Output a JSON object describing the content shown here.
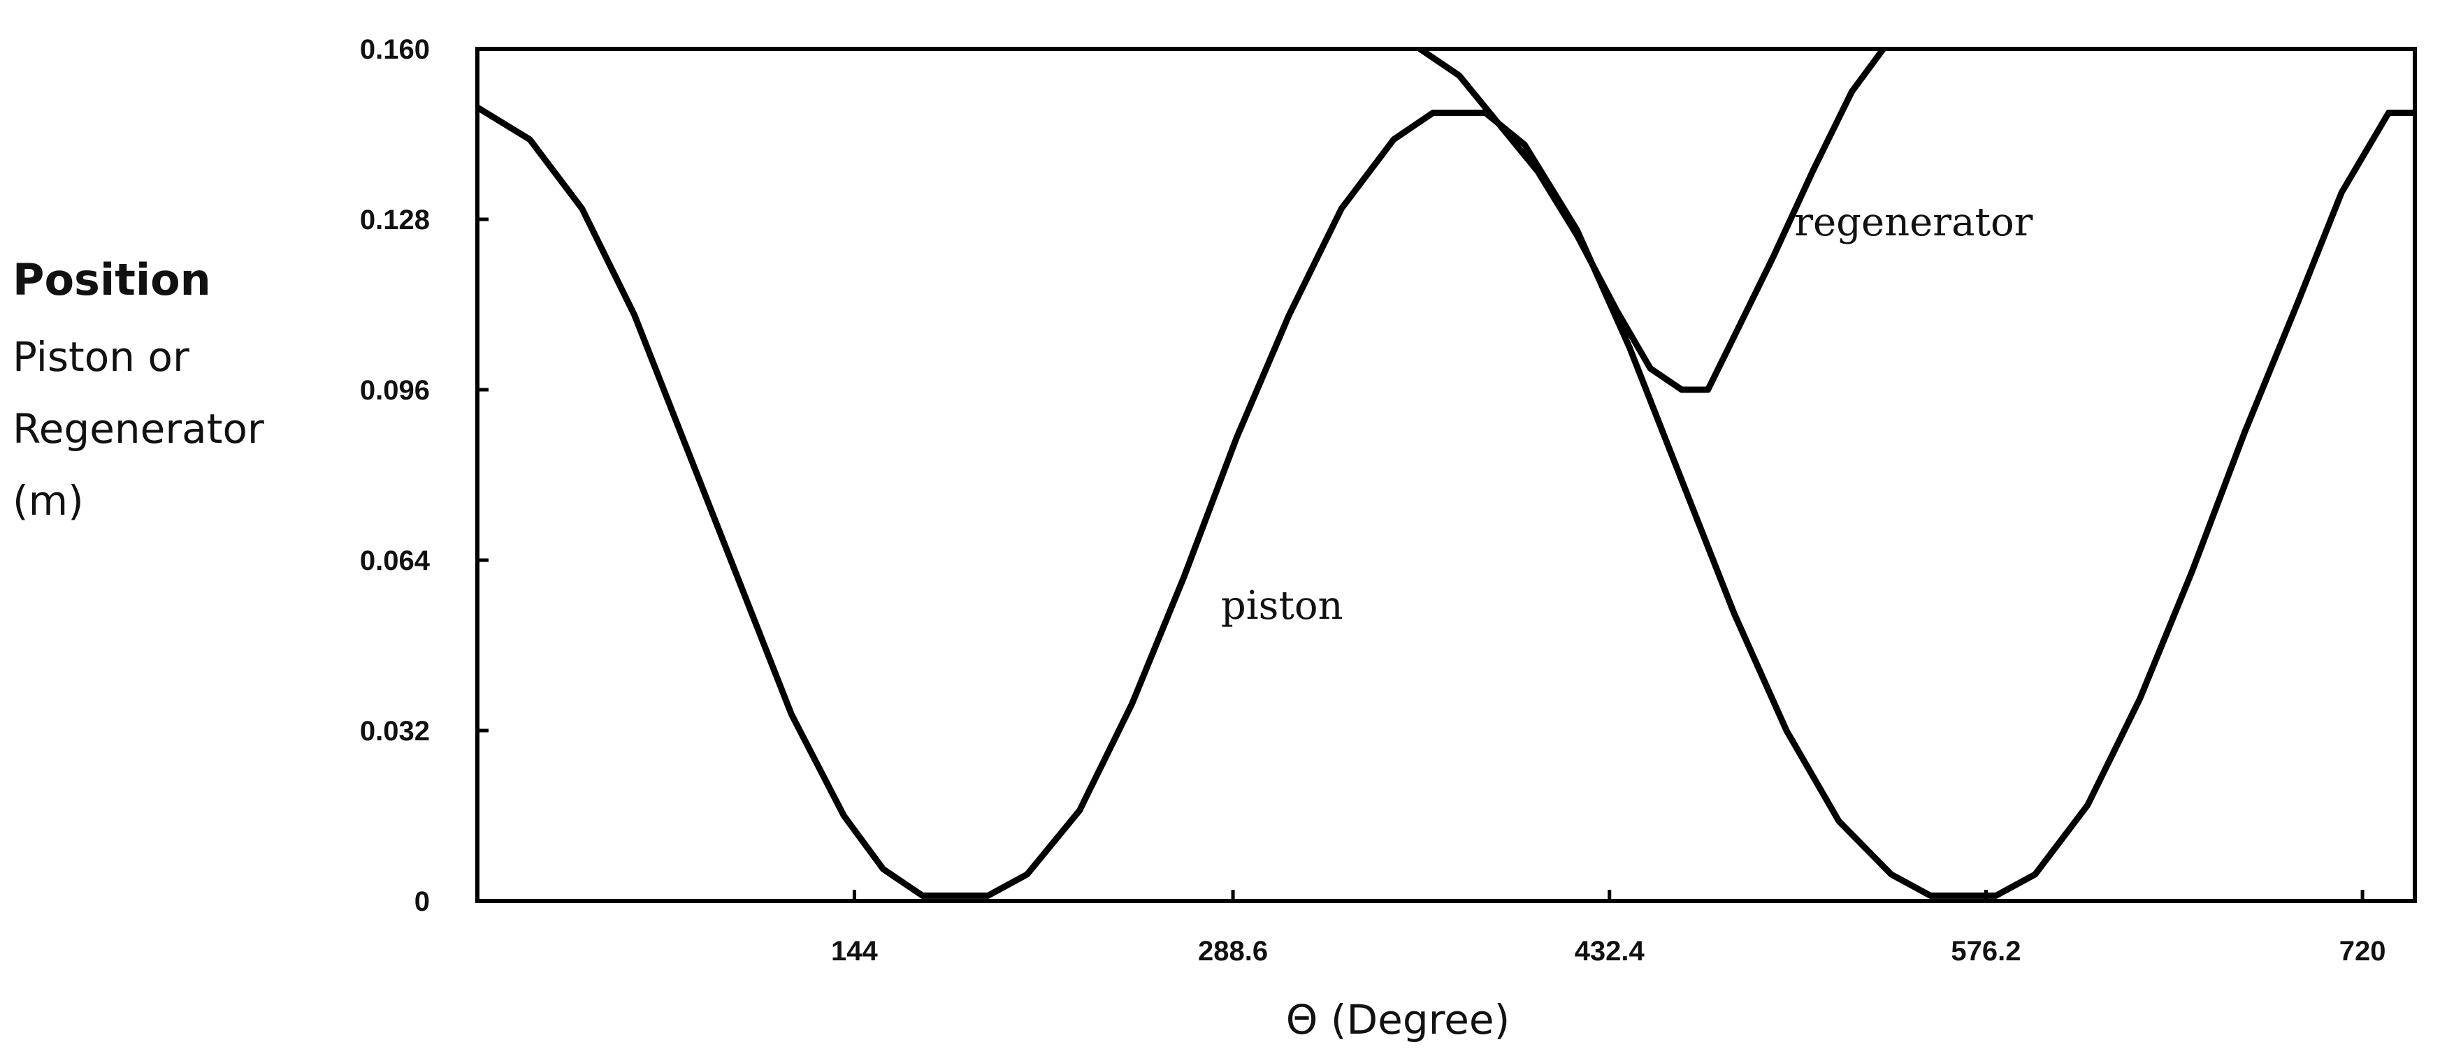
{
  "chart_data": {
    "type": "line",
    "xlabel": "Θ (Degree)",
    "ylabel": [
      "Position",
      "Piston or",
      "Regenerator",
      "(m)"
    ],
    "xlim": [
      0,
      740
    ],
    "ylim": [
      0,
      0.16
    ],
    "x_ticks": [
      {
        "value": 144,
        "label": "144"
      },
      {
        "value": 288.6,
        "label": "288.6"
      },
      {
        "value": 432.4,
        "label": "432.4"
      },
      {
        "value": 576.2,
        "label": "576.2"
      },
      {
        "value": 720,
        "label": "720"
      }
    ],
    "y_ticks": [
      {
        "value": 0,
        "label": "0"
      },
      {
        "value": 0.032,
        "label": "0.032"
      },
      {
        "value": 0.064,
        "label": "0.064"
      },
      {
        "value": 0.096,
        "label": "0.096"
      },
      {
        "value": 0.128,
        "label": "0.128"
      },
      {
        "value": 0.16,
        "label": "0.160"
      }
    ],
    "grid": false,
    "series": [
      {
        "name": "piston",
        "color": "#000000",
        "points": [
          [
            0,
            0.149
          ],
          [
            20,
            0.143
          ],
          [
            40,
            0.13
          ],
          [
            60,
            0.11
          ],
          [
            80,
            0.085
          ],
          [
            100,
            0.06
          ],
          [
            120,
            0.035
          ],
          [
            140,
            0.016
          ],
          [
            155,
            0.006
          ],
          [
            170,
            0.001
          ],
          [
            195,
            0.001
          ],
          [
            210,
            0.005
          ],
          [
            230,
            0.017
          ],
          [
            250,
            0.037
          ],
          [
            270,
            0.061
          ],
          [
            290,
            0.087
          ],
          [
            310,
            0.11
          ],
          [
            330,
            0.13
          ],
          [
            350,
            0.143
          ],
          [
            365,
            0.148
          ],
          [
            385,
            0.148
          ],
          [
            400,
            0.142
          ],
          [
            420,
            0.126
          ],
          [
            440,
            0.104
          ],
          [
            460,
            0.079
          ],
          [
            480,
            0.054
          ],
          [
            500,
            0.032
          ],
          [
            520,
            0.015
          ],
          [
            540,
            0.005
          ],
          [
            555,
            0.001
          ],
          [
            580,
            0.001
          ],
          [
            595,
            0.005
          ],
          [
            615,
            0.018
          ],
          [
            635,
            0.038
          ],
          [
            655,
            0.062
          ],
          [
            675,
            0.088
          ],
          [
            695,
            0.112
          ],
          [
            712,
            0.133
          ],
          [
            730,
            0.148
          ],
          [
            740,
            0.148
          ]
        ]
      },
      {
        "name": "regenerator",
        "color": "#000000",
        "points": [
          [
            360,
            0.16
          ],
          [
            375,
            0.155
          ],
          [
            390,
            0.146
          ],
          [
            405,
            0.137
          ],
          [
            420,
            0.125
          ],
          [
            435,
            0.111
          ],
          [
            448,
            0.1
          ],
          [
            460,
            0.096
          ],
          [
            470,
            0.096
          ],
          [
            480,
            0.106
          ],
          [
            495,
            0.121
          ],
          [
            510,
            0.137
          ],
          [
            525,
            0.152
          ],
          [
            537,
            0.16
          ]
        ]
      }
    ],
    "annotations": [
      {
        "text": "piston",
        "x": 284,
        "y": 0.053
      },
      {
        "text": "regenerator",
        "x": 503,
        "y": 0.125
      }
    ]
  }
}
